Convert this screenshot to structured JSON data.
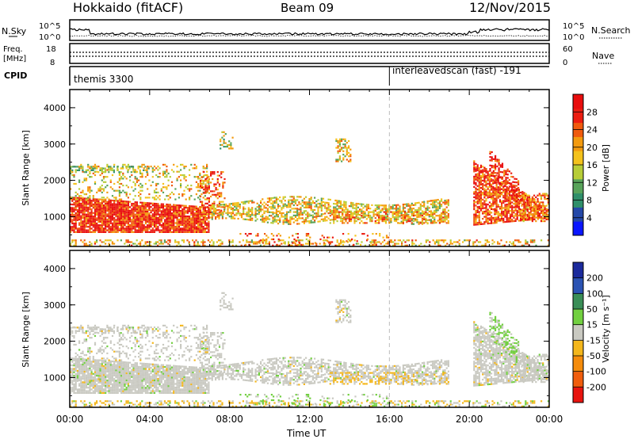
{
  "header": {
    "station": "Hokkaido (fitACF)",
    "beam": "Beam 09",
    "date": "12/Nov/2015"
  },
  "noise_panel": {
    "left_label": "N.Sky",
    "right_label": "N.Search",
    "ticks_left": [
      "10^5",
      "10^0"
    ],
    "ticks_right": [
      "10^5",
      "10^0"
    ]
  },
  "freq_panel": {
    "left_label_1": "Freq.",
    "left_label_2": "[MHz]",
    "right_label": "Nave",
    "ticks_left": [
      "18",
      "8"
    ],
    "ticks_right": [
      "60",
      "0"
    ]
  },
  "cpid_panel": {
    "label": "CPID",
    "modes": [
      {
        "name": "themis 3300",
        "start_hour": 0
      },
      {
        "name": "interleavedscan (fast) -191",
        "start_hour": 16
      }
    ]
  },
  "chart_data": [
    {
      "type": "heatmap",
      "name": "power",
      "ylabel": "Slant Range [km]",
      "xlabel": "Time UT",
      "x_ticks": [
        "00:00",
        "04:00",
        "08:00",
        "12:00",
        "16:00",
        "20:00",
        "00:00"
      ],
      "x_range_hours": [
        0,
        24
      ],
      "y_ticks": [
        "1000",
        "2000",
        "3000",
        "4000"
      ],
      "y_range_km": [
        180,
        4500
      ],
      "colorbar": {
        "label": "Power [dB]",
        "ticks": [
          "4",
          "8",
          "12",
          "16",
          "20",
          "24",
          "28"
        ],
        "colors": [
          "#0a16ff",
          "#2448a8",
          "#2f8f6a",
          "#58a35a",
          "#b7cd37",
          "#f4c21c",
          "#f39a0e",
          "#f05a0d",
          "#ec1c10",
          "#e80d0d"
        ]
      }
    },
    {
      "type": "heatmap",
      "name": "velocity",
      "ylabel": "Slant Range [km]",
      "xlabel": "Time UT",
      "x_ticks": [
        "00:00",
        "04:00",
        "08:00",
        "12:00",
        "16:00",
        "20:00",
        "00:00"
      ],
      "x_range_hours": [
        0,
        24
      ],
      "y_ticks": [
        "1000",
        "2000",
        "3000",
        "4000"
      ],
      "y_range_km": [
        180,
        4500
      ],
      "colorbar": {
        "label": "Velocity [m s⁻¹]",
        "ticks": [
          "200",
          "100",
          "50",
          "15",
          "-15",
          "-50",
          "-100",
          "-200"
        ],
        "colors": [
          "#1b2a9c",
          "#2b53b3",
          "#3a8e57",
          "#72d040",
          "#c9c9c1",
          "#f4b71c",
          "#f58c0c",
          "#f05d0d",
          "#e8140f"
        ]
      }
    }
  ],
  "time_axis_label": "Time UT"
}
